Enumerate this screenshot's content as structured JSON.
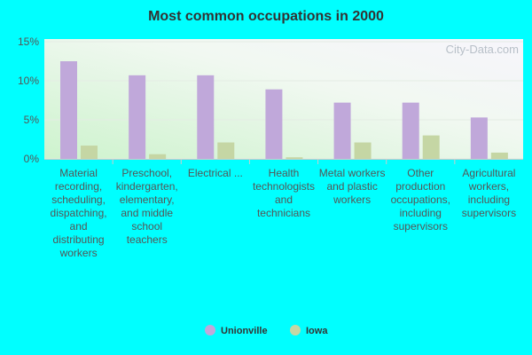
{
  "chart_data": {
    "type": "bar",
    "title": "Most common occupations in 2000",
    "watermark": "City-Data.com",
    "categories": [
      "Material recording, scheduling, dispatching, and distributing workers",
      "Preschool, kindergarten, elementary, and middle school teachers",
      "Electrical ...",
      "Health technologists and technicians",
      "Metal workers and plastic workers",
      "Other production occupations, including supervisors",
      "Agricultural workers, including supervisors"
    ],
    "series": [
      {
        "name": "Unionville",
        "color": "#c0a8da",
        "values": [
          12.5,
          10.7,
          10.7,
          8.9,
          7.2,
          7.2,
          5.3
        ]
      },
      {
        "name": "Iowa",
        "color": "#c5d6a4",
        "values": [
          1.7,
          0.6,
          2.1,
          0.2,
          2.1,
          3.0,
          0.8
        ]
      }
    ],
    "ylim": [
      0,
      15
    ],
    "yticks": [
      {
        "value": 0,
        "label": "0%"
      },
      {
        "value": 5,
        "label": "5%"
      },
      {
        "value": 10,
        "label": "10%"
      },
      {
        "value": 15,
        "label": "15%"
      }
    ],
    "grid": true,
    "legend": "bottom"
  }
}
